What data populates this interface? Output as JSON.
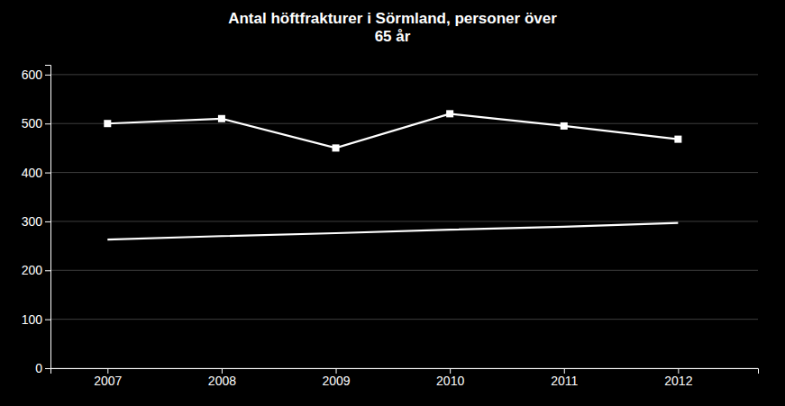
{
  "chart_data": {
    "type": "line",
    "title": "Antal höftfrakturer i Sörmland, personer över\n65 år",
    "x": [
      2007,
      2008,
      2009,
      2010,
      2011,
      2012
    ],
    "series": [
      {
        "color": "#ffffff",
        "marker": "square",
        "values": [
          500,
          510,
          450,
          520,
          495,
          468
        ]
      },
      {
        "color": "#ffffff",
        "values": [
          263,
          270,
          276,
          283,
          289,
          297
        ]
      }
    ],
    "xlim": [
      2006.5,
      2012.7
    ],
    "xticks": [
      2007,
      2008,
      2009,
      2010,
      2011,
      2012
    ],
    "ylim": [
      0,
      620
    ],
    "yticks": [
      0,
      100,
      200,
      300,
      400,
      500,
      600
    ],
    "grid": true
  }
}
